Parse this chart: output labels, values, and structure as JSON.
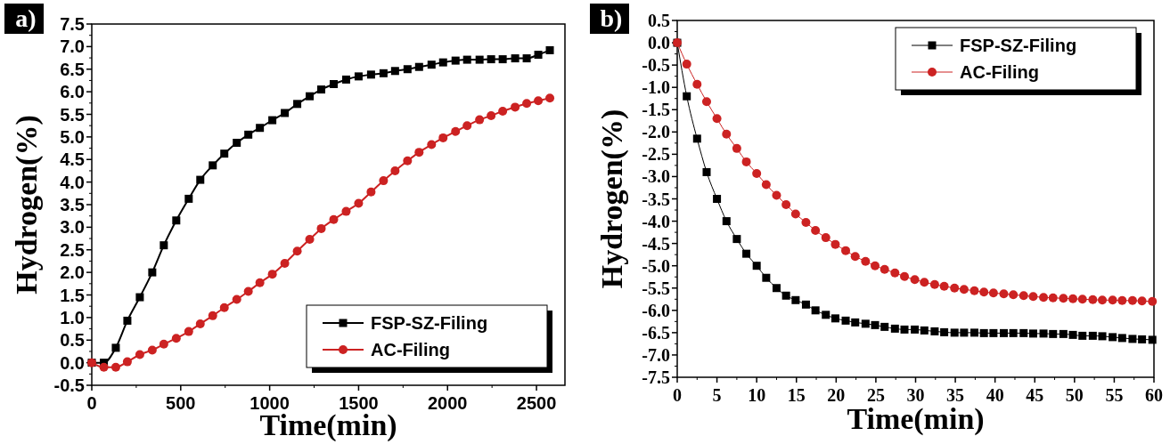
{
  "chart_data": [
    {
      "type": "line",
      "xlabel": "Time(min)",
      "ylabel": "Hydrogen(%)",
      "annotations": [
        "a)"
      ],
      "line_style": "solid",
      "legend": "bottom right",
      "grid": false,
      "xlim": [
        0,
        2660
      ],
      "xticks": [
        0,
        500,
        1000,
        1500,
        2000,
        2500
      ],
      "ylim": [
        -0.5,
        7.5
      ],
      "yticks": [
        -0.5,
        {
          "value": 0,
          "label": "0.0"
        },
        0.5,
        {
          "value": 1,
          "label": "1.0"
        },
        1.5,
        {
          "value": 2,
          "label": "2.0"
        },
        2.5,
        {
          "value": 3,
          "label": "3.0"
        },
        3.5,
        {
          "value": 4,
          "label": "4.0"
        },
        4.5,
        {
          "value": 5,
          "label": "5.0"
        },
        5.5,
        {
          "value": 6,
          "label": "6.0"
        },
        6.5,
        {
          "value": 7,
          "label": "7.0"
        },
        7.5
      ],
      "x": [
        0,
        68,
        135,
        200,
        270,
        340,
        405,
        475,
        545,
        610,
        680,
        745,
        815,
        880,
        945,
        1015,
        1085,
        1155,
        1225,
        1290,
        1360,
        1430,
        1500,
        1570,
        1640,
        1705,
        1775,
        1840,
        1910,
        1975,
        2045,
        2110,
        2180,
        2245,
        2310,
        2380,
        2445,
        2510,
        2575
      ],
      "series": [
        {
          "name": "FSP-SZ-Filing",
          "color": "#000000",
          "marker": "square",
          "values": [
            0,
            0,
            0.33,
            0.93,
            1.45,
            2.0,
            2.6,
            3.15,
            3.63,
            4.05,
            4.37,
            4.63,
            4.87,
            5.05,
            5.2,
            5.37,
            5.53,
            5.73,
            5.9,
            6.05,
            6.17,
            6.27,
            6.34,
            6.38,
            6.41,
            6.46,
            6.5,
            6.55,
            6.6,
            6.65,
            6.69,
            6.71,
            6.71,
            6.72,
            6.72,
            6.74,
            6.74,
            6.82,
            6.92
          ]
        },
        {
          "name": "AC-Filing",
          "color": "#cc2222",
          "marker": "circle",
          "values": [
            0,
            -0.1,
            -0.1,
            0.02,
            0.18,
            0.28,
            0.41,
            0.54,
            0.69,
            0.86,
            1.04,
            1.22,
            1.4,
            1.58,
            1.77,
            1.96,
            2.2,
            2.47,
            2.73,
            2.97,
            3.17,
            3.35,
            3.53,
            3.78,
            4.03,
            4.25,
            4.47,
            4.66,
            4.83,
            4.98,
            5.12,
            5.25,
            5.38,
            5.47,
            5.57,
            5.66,
            5.74,
            5.8,
            5.86
          ]
        }
      ]
    },
    {
      "type": "line",
      "xlabel": "Time(min)",
      "ylabel": "Hydrogen(%)",
      "annotations": [
        "b)"
      ],
      "line_style": "solid",
      "legend": "top right",
      "grid": false,
      "xlim": [
        0,
        60
      ],
      "xticks": [
        0,
        5,
        10,
        15,
        20,
        25,
        30,
        35,
        40,
        45,
        50,
        55,
        60
      ],
      "ylim": [
        -7.5,
        0.5
      ],
      "yticks": [
        -7.5,
        {
          "value": -7,
          "label": "-7.0"
        },
        -6.5,
        {
          "value": -6,
          "label": "-6.0"
        },
        -5.5,
        {
          "value": -5,
          "label": "-5.0"
        },
        -4.5,
        {
          "value": -4,
          "label": "-4.0"
        },
        -3.5,
        {
          "value": -3,
          "label": "-3.0"
        },
        -2.5,
        {
          "value": -2,
          "label": "-2.0"
        },
        -1.5,
        {
          "value": -1,
          "label": "-1.0"
        },
        -0.5,
        {
          "value": 0,
          "label": "0.0"
        },
        0.5
      ],
      "x": [
        0,
        1.2,
        2.5,
        3.7,
        5.0,
        6.2,
        7.5,
        8.7,
        10.0,
        11.2,
        12.5,
        13.7,
        14.9,
        16.2,
        17.4,
        18.7,
        19.9,
        21.2,
        22.4,
        23.7,
        24.9,
        26.1,
        27.4,
        28.6,
        29.9,
        31.1,
        32.4,
        33.6,
        34.9,
        36.1,
        37.4,
        38.6,
        39.8,
        41.1,
        42.3,
        43.6,
        44.8,
        46.1,
        47.3,
        48.6,
        49.8,
        51.0,
        52.3,
        53.5,
        54.8,
        56.0,
        57.3,
        58.5,
        59.8
      ],
      "series": [
        {
          "name": "FSP-SZ-Filing",
          "color": "#000000",
          "marker": "square",
          "values": [
            0,
            -1.2,
            -2.15,
            -2.9,
            -3.5,
            -4.0,
            -4.4,
            -4.73,
            -5.0,
            -5.27,
            -5.5,
            -5.67,
            -5.77,
            -5.87,
            -6.0,
            -6.1,
            -6.18,
            -6.23,
            -6.27,
            -6.3,
            -6.33,
            -6.37,
            -6.41,
            -6.43,
            -6.43,
            -6.45,
            -6.47,
            -6.49,
            -6.5,
            -6.5,
            -6.5,
            -6.51,
            -6.51,
            -6.51,
            -6.51,
            -6.51,
            -6.52,
            -6.52,
            -6.53,
            -6.53,
            -6.55,
            -6.57,
            -6.57,
            -6.58,
            -6.6,
            -6.62,
            -6.64,
            -6.65,
            -6.66
          ]
        },
        {
          "name": "AC-Filing",
          "color": "#cc2222",
          "marker": "circle",
          "values": [
            0,
            -0.48,
            -0.93,
            -1.32,
            -1.7,
            -2.05,
            -2.37,
            -2.67,
            -2.93,
            -3.18,
            -3.42,
            -3.63,
            -3.84,
            -4.03,
            -4.21,
            -4.37,
            -4.52,
            -4.66,
            -4.79,
            -4.9,
            -5.0,
            -5.08,
            -5.16,
            -5.24,
            -5.31,
            -5.37,
            -5.42,
            -5.46,
            -5.5,
            -5.53,
            -5.56,
            -5.59,
            -5.61,
            -5.63,
            -5.65,
            -5.67,
            -5.69,
            -5.71,
            -5.72,
            -5.73,
            -5.74,
            -5.75,
            -5.76,
            -5.77,
            -5.77,
            -5.78,
            -5.78,
            -5.79,
            -5.8
          ]
        }
      ]
    }
  ]
}
